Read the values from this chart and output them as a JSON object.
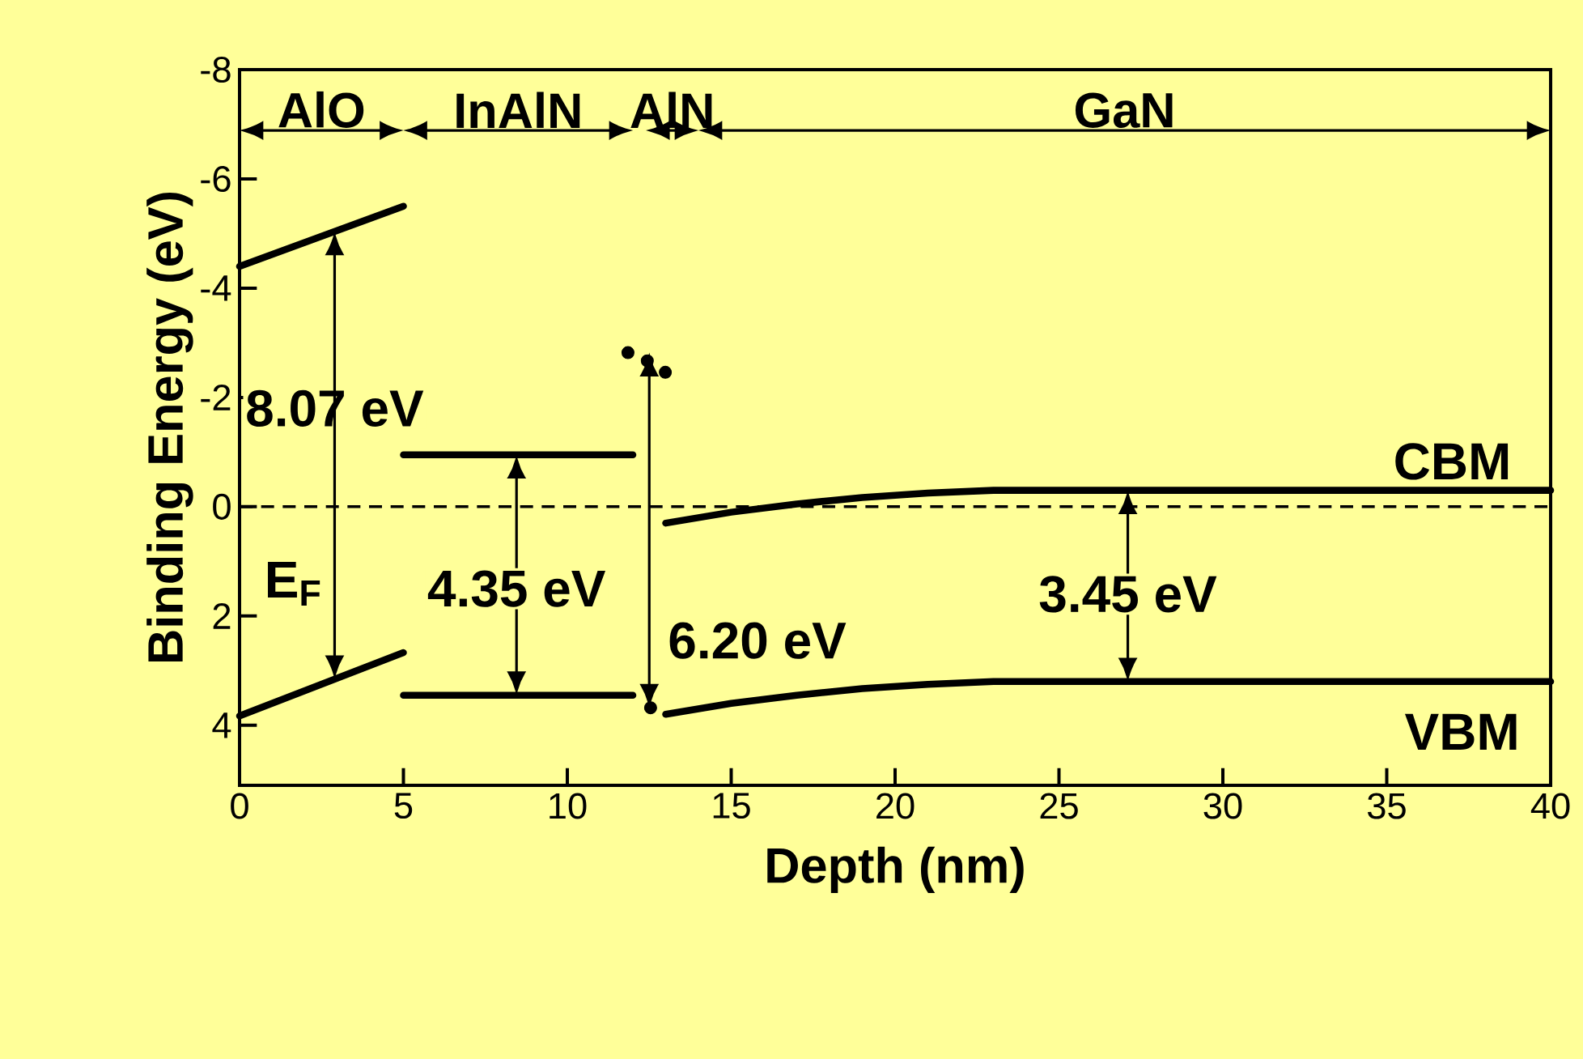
{
  "chart_data": {
    "type": "line",
    "xlabel": "Depth (nm)",
    "ylabel": "Binding Energy (eV)",
    "xlim": [
      0,
      40
    ],
    "xticks": [
      0,
      5,
      10,
      15,
      20,
      25,
      30,
      35,
      40
    ],
    "ylim": [
      5.1,
      -8
    ],
    "yticks": [
      -8,
      -6,
      -4,
      -2,
      0,
      2,
      4
    ],
    "series": [
      {
        "color": "#000000",
        "x": [
          0,
          5
        ],
        "values": [
          -4.4,
          -5.5
        ]
      },
      {
        "color": "#000000",
        "x": [
          0,
          5
        ],
        "values": [
          3.83,
          2.67
        ]
      },
      {
        "color": "#000000",
        "x": [
          5,
          12
        ],
        "values": [
          -0.95,
          -0.95
        ]
      },
      {
        "color": "#000000",
        "x": [
          5,
          12
        ],
        "values": [
          3.45,
          3.45
        ]
      },
      {
        "color": "#000000",
        "x": [
          13,
          15,
          17,
          19,
          21,
          23,
          40
        ],
        "values": [
          0.3,
          0.1,
          -0.05,
          -0.17,
          -0.25,
          -0.3,
          -0.3
        ]
      },
      {
        "color": "#000000",
        "x": [
          13,
          15,
          17,
          19,
          21,
          23,
          40
        ],
        "values": [
          3.8,
          3.6,
          3.45,
          3.33,
          3.25,
          3.2,
          3.2
        ]
      },
      {
        "type": "scatter",
        "color": "#000000",
        "x": [
          11.85,
          12.44,
          12.99,
          12.54
        ],
        "values": [
          -2.82,
          -2.67,
          -2.46,
          3.68
        ]
      }
    ],
    "ref_lines": [
      {
        "axis": "y",
        "value": 0,
        "label": "E$_{F}$",
        "line_style": "dashed",
        "color": "#000000"
      }
    ],
    "annotations": [
      "AlO",
      "InAlN",
      "AlN",
      "GaN",
      "8.07 eV",
      {
        "text": "4.35 eV",
        "x": 8.45,
        "y": -0.95
      },
      "6.20 eV",
      {
        "text": "3.45 eV",
        "x": 27.1,
        "y": -0.3
      },
      "CBM",
      "VBM"
    ]
  }
}
